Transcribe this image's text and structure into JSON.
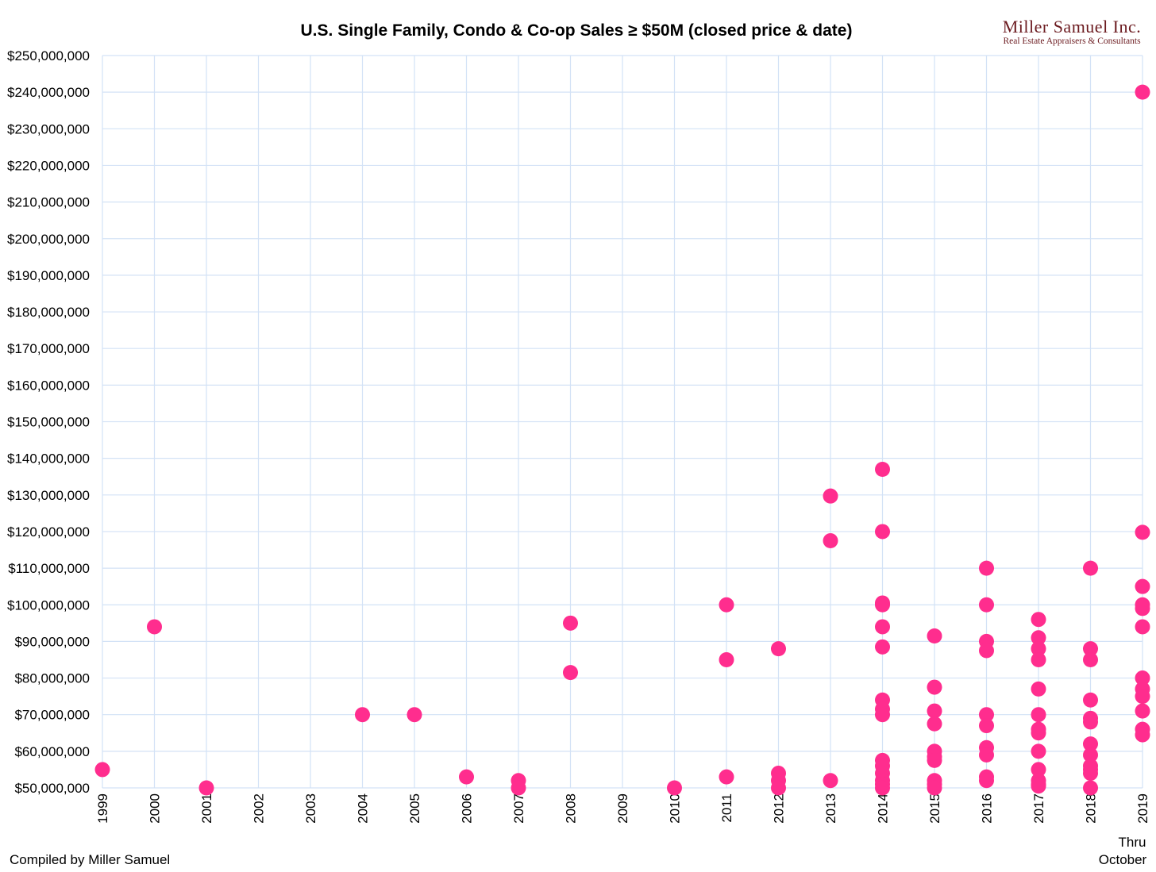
{
  "colors": {
    "point": "#ff2d8e",
    "grid": "#d3e2f6",
    "logo": "#6b1a1f"
  },
  "logo": {
    "name": "Miller Samuel Inc.",
    "tagline": "Real Estate Appraisers & Consultants"
  },
  "footer": {
    "credit": "Compiled by Miller Samuel",
    "last_period_note_line1": "Thru",
    "last_period_note_line2": "October"
  },
  "chart_data": {
    "type": "scatter",
    "title": "U.S. Single Family, Condo & Co-op Sales ≥ $50M (closed price & date)",
    "xlabel": "",
    "ylabel": "",
    "x_ticks": [
      "1999",
      "2000",
      "2001",
      "2002",
      "2003",
      "2004",
      "2005",
      "2006",
      "2007",
      "2008",
      "2009",
      "2010",
      "2011",
      "2012",
      "2013",
      "2014",
      "2015",
      "2016",
      "2017",
      "2018",
      "2019"
    ],
    "xlim": [
      1999,
      2019
    ],
    "ylim": [
      50000000,
      250000000
    ],
    "y_tick_step": 10000000,
    "y_tick_labels": [
      "$50,000,000",
      "$60,000,000",
      "$70,000,000",
      "$80,000,000",
      "$90,000,000",
      "$100,000,000",
      "$110,000,000",
      "$120,000,000",
      "$130,000,000",
      "$140,000,000",
      "$150,000,000",
      "$160,000,000",
      "$170,000,000",
      "$180,000,000",
      "$190,000,000",
      "$200,000,000",
      "$210,000,000",
      "$220,000,000",
      "$230,000,000",
      "$240,000,000",
      "$250,000,000"
    ],
    "grid": true,
    "legend": "none",
    "points": [
      [
        1999,
        55000000
      ],
      [
        2000,
        94000000
      ],
      [
        2001,
        50000000
      ],
      [
        2004,
        70000000
      ],
      [
        2005,
        70000000
      ],
      [
        2006,
        53000000
      ],
      [
        2007,
        52000000
      ],
      [
        2007,
        50000000
      ],
      [
        2008,
        95000000
      ],
      [
        2008,
        81500000
      ],
      [
        2010,
        50000000
      ],
      [
        2011,
        100000000
      ],
      [
        2011,
        85000000
      ],
      [
        2011,
        53000000
      ],
      [
        2012,
        88000000
      ],
      [
        2012,
        54000000
      ],
      [
        2012,
        52000000
      ],
      [
        2012,
        50000000
      ],
      [
        2013,
        129700000
      ],
      [
        2013,
        117500000
      ],
      [
        2013,
        52000000
      ],
      [
        2014,
        137000000
      ],
      [
        2014,
        120000000
      ],
      [
        2014,
        100500000
      ],
      [
        2014,
        100000000
      ],
      [
        2014,
        94000000
      ],
      [
        2014,
        88500000
      ],
      [
        2014,
        74000000
      ],
      [
        2014,
        71500000
      ],
      [
        2014,
        70000000
      ],
      [
        2014,
        57500000
      ],
      [
        2014,
        56000000
      ],
      [
        2014,
        54000000
      ],
      [
        2014,
        52000000
      ],
      [
        2014,
        51000000
      ],
      [
        2014,
        50000000
      ],
      [
        2015,
        91500000
      ],
      [
        2015,
        77500000
      ],
      [
        2015,
        71000000
      ],
      [
        2015,
        67500000
      ],
      [
        2015,
        60000000
      ],
      [
        2015,
        58500000
      ],
      [
        2015,
        57500000
      ],
      [
        2015,
        52000000
      ],
      [
        2015,
        51000000
      ],
      [
        2015,
        50000000
      ],
      [
        2016,
        110000000
      ],
      [
        2016,
        100000000
      ],
      [
        2016,
        90000000
      ],
      [
        2016,
        87500000
      ],
      [
        2016,
        70000000
      ],
      [
        2016,
        67000000
      ],
      [
        2016,
        61000000
      ],
      [
        2016,
        59000000
      ],
      [
        2016,
        53000000
      ],
      [
        2016,
        52000000
      ],
      [
        2017,
        96000000
      ],
      [
        2017,
        91000000
      ],
      [
        2017,
        88000000
      ],
      [
        2017,
        85000000
      ],
      [
        2017,
        77000000
      ],
      [
        2017,
        70000000
      ],
      [
        2017,
        66000000
      ],
      [
        2017,
        65000000
      ],
      [
        2017,
        60000000
      ],
      [
        2017,
        55000000
      ],
      [
        2017,
        52000000
      ],
      [
        2017,
        51000000
      ],
      [
        2017,
        50500000
      ],
      [
        2018,
        110000000
      ],
      [
        2018,
        88000000
      ],
      [
        2018,
        85000000
      ],
      [
        2018,
        74000000
      ],
      [
        2018,
        69000000
      ],
      [
        2018,
        68000000
      ],
      [
        2018,
        62000000
      ],
      [
        2018,
        59000000
      ],
      [
        2018,
        56000000
      ],
      [
        2018,
        55000000
      ],
      [
        2018,
        54000000
      ],
      [
        2018,
        50000000
      ],
      [
        2019,
        240000000
      ],
      [
        2019,
        119800000
      ],
      [
        2019,
        105000000
      ],
      [
        2019,
        100000000
      ],
      [
        2019,
        99000000
      ],
      [
        2019,
        94000000
      ],
      [
        2019,
        80000000
      ],
      [
        2019,
        77000000
      ],
      [
        2019,
        75000000
      ],
      [
        2019,
        71000000
      ],
      [
        2019,
        66000000
      ],
      [
        2019,
        64500000
      ]
    ]
  }
}
